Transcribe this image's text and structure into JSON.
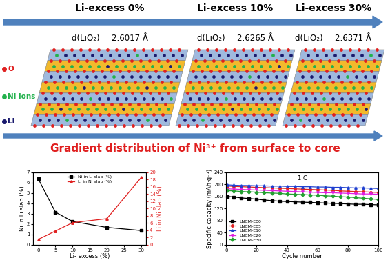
{
  "diagram": {
    "panels": [
      {
        "title": "Li-excess 0%",
        "spacing": "d(LiO₂) = 2.6017 Å"
      },
      {
        "title": "Li-excess 10%",
        "spacing": "d(LiO₂) = 2.6265 Å"
      },
      {
        "title": "Li-excess 30%",
        "spacing": "d(LiO₂) = 2.6371 Å"
      }
    ],
    "legend": [
      {
        "label": "O",
        "color": "#e02020"
      },
      {
        "label": "Ni ions",
        "color": "#22b14c"
      },
      {
        "label": "Li",
        "color": "#1a1a6e"
      }
    ],
    "caption": "Gradient distribution of Ni³⁺ from surface to core"
  },
  "chart_data": [
    {
      "type": "line",
      "x": [
        0,
        5,
        10,
        20,
        30
      ],
      "xlabel": "Li- excess (%)",
      "ylabel": "Ni in Li slab (%)",
      "y2label": "Li in Ni slab (%)",
      "xlim": [
        -1.5,
        31.5
      ],
      "xticks": [
        0,
        5,
        10,
        15,
        20,
        25,
        30
      ],
      "ylim": [
        0,
        7
      ],
      "yticks": [
        0,
        1,
        2,
        3,
        4,
        5,
        6,
        7
      ],
      "y2lim": [
        0,
        20
      ],
      "y2ticks": [
        0,
        2,
        4,
        6,
        8,
        10,
        12,
        14,
        16,
        18,
        20
      ],
      "legend": "upper center",
      "series": [
        {
          "name": "Ni in Li slab (%)",
          "color": "#000000",
          "marker": "square",
          "values": [
            6.35,
            3.15,
            2.25,
            1.68,
            1.38
          ]
        },
        {
          "name": "Li in Ni slab (%)",
          "color": "#e02020",
          "marker": "triangle",
          "axis": "y2",
          "values": [
            1.5,
            3.8,
            6.1,
            7.2,
            18.5
          ]
        }
      ]
    },
    {
      "type": "line",
      "annotation": "1 C",
      "x": [
        1,
        5,
        10,
        15,
        20,
        25,
        30,
        35,
        40,
        45,
        50,
        55,
        60,
        65,
        70,
        75,
        80,
        85,
        90,
        95,
        100
      ],
      "xlabel": "Cycle number",
      "ylabel": "Specific capacity (mAh·g⁻¹)",
      "xlim": [
        0,
        100
      ],
      "xticks": [
        0,
        20,
        40,
        60,
        80,
        100
      ],
      "ylim": [
        0,
        240
      ],
      "yticks": [
        0,
        40,
        80,
        120,
        160,
        200,
        240
      ],
      "legend": "lower left",
      "series": [
        {
          "name": "LNCM-E00",
          "color": "#000000",
          "marker": "square",
          "values": [
            160,
            158,
            155,
            153,
            151,
            148,
            146,
            144,
            143,
            142,
            141,
            140,
            139,
            138,
            137,
            136,
            135,
            134,
            134,
            133,
            132
          ]
        },
        {
          "name": "LNCM-E05",
          "color": "#e02020",
          "marker": "circle",
          "values": [
            194,
            193,
            192,
            191,
            190,
            189,
            188,
            187,
            186,
            185,
            184,
            183,
            182,
            181,
            180,
            178,
            177,
            176,
            175,
            174,
            173
          ]
        },
        {
          "name": "LNCM-E10",
          "color": "#1f3fd0",
          "marker": "triangle",
          "values": [
            198,
            197,
            196,
            196,
            195,
            195,
            194,
            194,
            193,
            193,
            192,
            192,
            191,
            191,
            190,
            190,
            189,
            188,
            188,
            187,
            186
          ]
        },
        {
          "name": "LNCM-E20",
          "color": "#e020e0",
          "marker": "triangle_down",
          "values": [
            185,
            184,
            183,
            182,
            181,
            180,
            179,
            178,
            177,
            176,
            175,
            174,
            173,
            172,
            172,
            171,
            170,
            169,
            168,
            168,
            167
          ]
        },
        {
          "name": "LNCM-E30",
          "color": "#22a030",
          "marker": "diamond",
          "values": [
            179,
            178,
            176,
            175,
            174,
            172,
            171,
            170,
            168,
            167,
            166,
            165,
            164,
            162,
            161,
            159,
            158,
            156,
            154,
            152,
            150
          ]
        }
      ]
    }
  ]
}
